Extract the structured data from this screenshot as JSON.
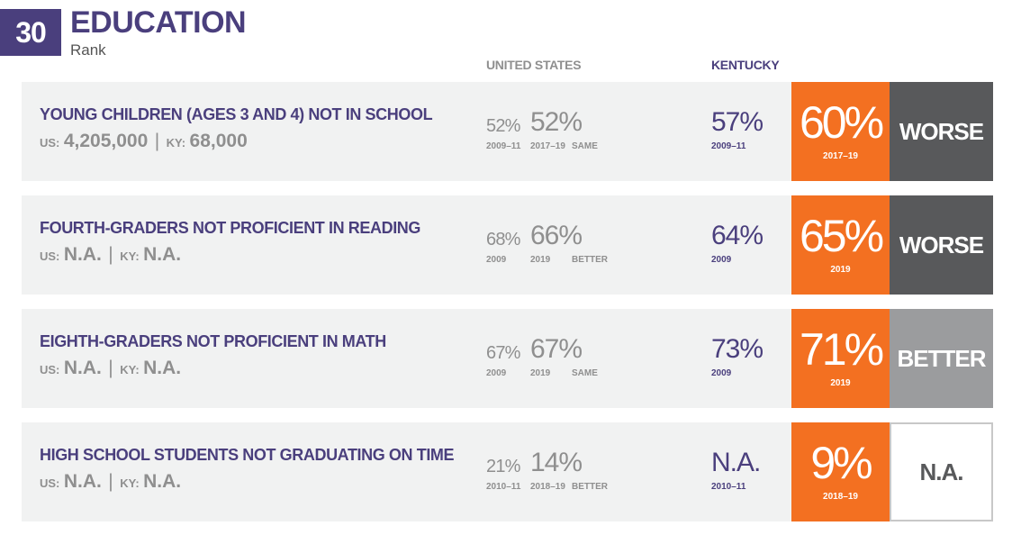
{
  "header": {
    "rank": "30",
    "title": "EDUCATION",
    "subtitle": "Rank"
  },
  "columns": {
    "us": "UNITED STATES",
    "ky": "KENTUCKY"
  },
  "colors": {
    "purple": "#4a3f7d",
    "orange": "#f37021",
    "worse": "#58595b",
    "better": "#9b9c9e"
  },
  "rows": [
    {
      "label": "YOUNG CHILDREN (AGES 3 AND 4) NOT IN SCHOOL",
      "us_label": "US:",
      "us_pop": "4,205,000",
      "sep": "|",
      "ky_label": "KY:",
      "ky_pop": "68,000",
      "us_old": "52%",
      "us_old_year": "2009–11",
      "us_new": "52%",
      "us_new_year": "2017–19",
      "us_trend": "SAME",
      "ky_old": "57%",
      "ky_old_year": "2009–11",
      "state_new": "60%",
      "state_new_year": "2017–19",
      "comparison": "WORSE"
    },
    {
      "label": "FOURTH-GRADERS NOT PROFICIENT IN READING",
      "us_label": "US:",
      "us_pop": "N.A.",
      "sep": "|",
      "ky_label": "KY:",
      "ky_pop": "N.A.",
      "us_old": "68%",
      "us_old_year": "2009",
      "us_new": "66%",
      "us_new_year": "2019",
      "us_trend": "BETTER",
      "ky_old": "64%",
      "ky_old_year": "2009",
      "state_new": "65%",
      "state_new_year": "2019",
      "comparison": "WORSE"
    },
    {
      "label": "EIGHTH-GRADERS NOT PROFICIENT IN MATH",
      "us_label": "US:",
      "us_pop": "N.A.",
      "sep": "|",
      "ky_label": "KY:",
      "ky_pop": "N.A.",
      "us_old": "67%",
      "us_old_year": "2009",
      "us_new": "67%",
      "us_new_year": "2019",
      "us_trend": "SAME",
      "ky_old": "73%",
      "ky_old_year": "2009",
      "state_new": "71%",
      "state_new_year": "2019",
      "comparison": "BETTER"
    },
    {
      "label": "HIGH SCHOOL STUDENTS NOT GRADUATING ON TIME",
      "us_label": "US:",
      "us_pop": "N.A.",
      "sep": "|",
      "ky_label": "KY:",
      "ky_pop": "N.A.",
      "us_old": "21%",
      "us_old_year": "2010–11",
      "us_new": "14%",
      "us_new_year": "2018–19",
      "us_trend": "BETTER",
      "ky_old": "N.A.",
      "ky_old_year": "2010–11",
      "state_new": "9%",
      "state_new_year": "2018–19",
      "comparison": "N.A."
    }
  ]
}
